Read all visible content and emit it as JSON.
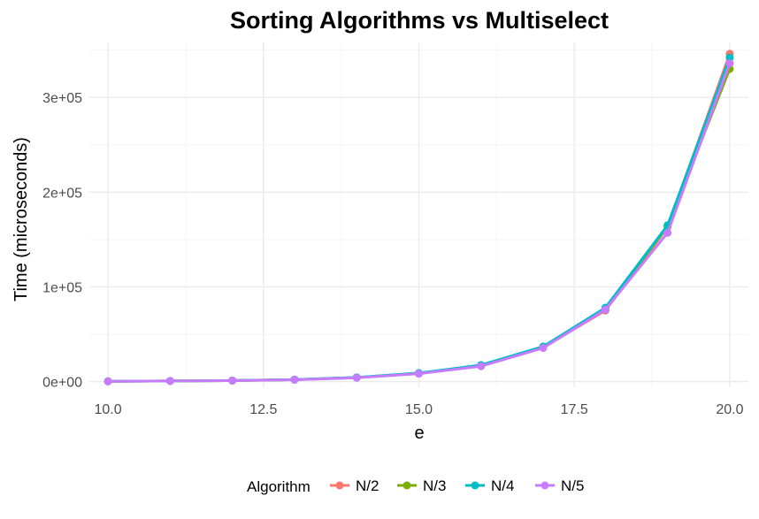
{
  "chart_data": {
    "type": "line",
    "title": "Sorting Algorithms vs Multiselect",
    "xlabel": "e",
    "ylabel": "Time (microseconds)",
    "xlim": [
      9.7,
      20.3
    ],
    "ylim": [
      -6000,
      358000
    ],
    "x_ticks": [
      10,
      12.5,
      15,
      17.5,
      20
    ],
    "x_tick_labels": [
      "10.0",
      "12.5",
      "15.0",
      "17.5",
      "20.0"
    ],
    "y_ticks": [
      0,
      100000,
      200000,
      300000
    ],
    "y_tick_labels": [
      "0e+00",
      "1e+05",
      "2e+05",
      "3e+05"
    ],
    "x": [
      10,
      11,
      12,
      13,
      14,
      15,
      16,
      17,
      18,
      19,
      20
    ],
    "series": [
      {
        "name": "N/2",
        "color": "#F8766D",
        "values": [
          300,
          700,
          1100,
          2100,
          4300,
          8800,
          17000,
          36000,
          75000,
          163000,
          346000
        ]
      },
      {
        "name": "N/3",
        "color": "#7CAE00",
        "values": [
          280,
          650,
          1050,
          2000,
          4200,
          8600,
          16800,
          36500,
          76000,
          164000,
          330000
        ]
      },
      {
        "name": "N/4",
        "color": "#00BFC4",
        "values": [
          300,
          680,
          1100,
          2100,
          4400,
          9000,
          17500,
          37000,
          78000,
          165000,
          342000
        ]
      },
      {
        "name": "N/5",
        "color": "#C77CFF",
        "values": [
          260,
          600,
          1000,
          1900,
          4000,
          8300,
          16200,
          35500,
          76000,
          157000,
          336000
        ]
      }
    ],
    "grid": true,
    "legend": {
      "title": "Algorithm",
      "position": "bottom"
    }
  }
}
